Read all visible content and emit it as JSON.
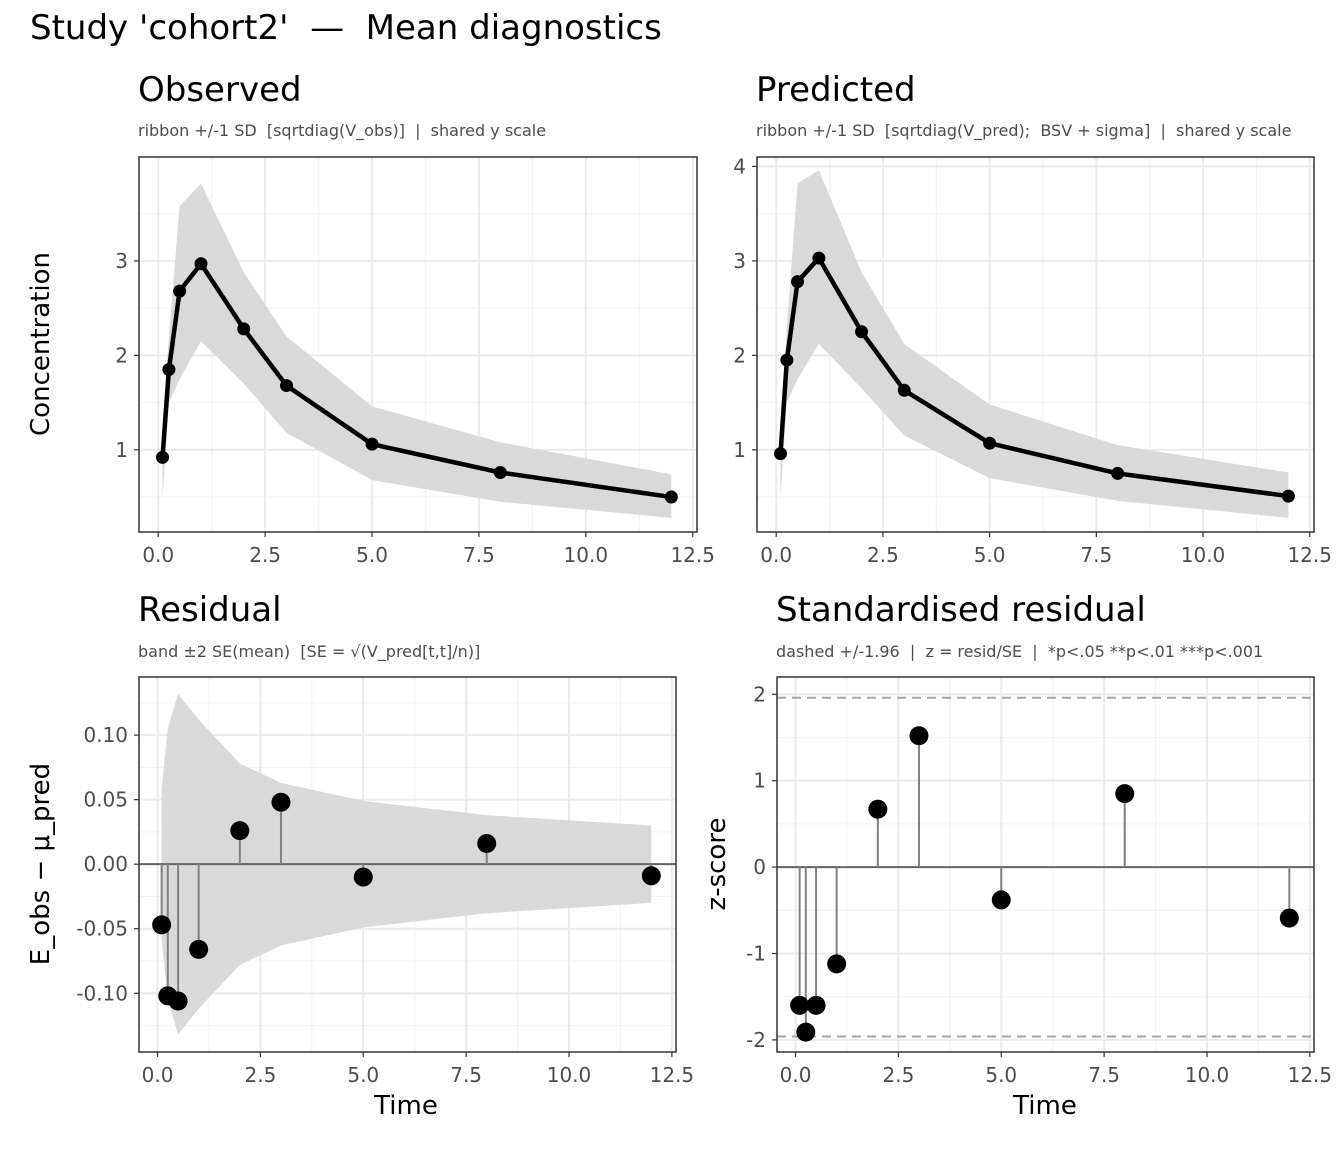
{
  "page_title": "Study 'cohort2'  —  Mean diagnostics",
  "colors": {
    "ribbon": "#d9d9d9",
    "line": "#000000",
    "grid_major": "#ebebeb",
    "grid_minor": "#f2f2f2",
    "panel_border": "#333333",
    "zero_line": "#666666",
    "stem": "#808080",
    "dashed": "#a6a6a6"
  },
  "chart_data": [
    {
      "panel": "observed",
      "type": "line",
      "title": "Observed",
      "subtitle": "ribbon +/-1 SD  [sqrtdiag(V_obs)]  |  shared y scale",
      "xlabel": "",
      "ylabel": "Concentration",
      "xlim": [
        -0.45,
        12.6
      ],
      "ylim": [
        0.13,
        4.1
      ],
      "x_ticks": [
        "0.0",
        "2.5",
        "5.0",
        "7.5",
        "10.0",
        "12.5"
      ],
      "y_ticks": [
        "1",
        "2",
        "3"
      ],
      "x": [
        0.1,
        0.25,
        0.5,
        1,
        2,
        3,
        5,
        8,
        12
      ],
      "y": [
        0.92,
        1.85,
        2.68,
        2.97,
        2.28,
        1.68,
        1.06,
        0.76,
        0.5
      ],
      "ribbon_lower": [
        0.5,
        1.5,
        1.75,
        2.15,
        1.7,
        1.18,
        0.68,
        0.45,
        0.28
      ],
      "ribbon_upper": [
        1.3,
        2.2,
        3.58,
        3.82,
        2.88,
        2.2,
        1.46,
        1.08,
        0.74
      ]
    },
    {
      "panel": "predicted",
      "type": "line",
      "title": "Predicted",
      "subtitle": "ribbon +/-1 SD  [sqrtdiag(V_pred);  BSV + sigma]  |  shared y scale",
      "xlabel": "",
      "ylabel": "",
      "xlim": [
        -0.45,
        12.6
      ],
      "ylim": [
        0.13,
        4.1
      ],
      "x_ticks": [
        "0.0",
        "2.5",
        "5.0",
        "7.5",
        "10.0",
        "12.5"
      ],
      "y_ticks": [
        "1",
        "2",
        "3",
        "4"
      ],
      "x": [
        0.1,
        0.25,
        0.5,
        1,
        2,
        3,
        5,
        8,
        12
      ],
      "y": [
        0.96,
        1.95,
        2.78,
        3.03,
        2.25,
        1.63,
        1.07,
        0.75,
        0.51
      ],
      "ribbon_lower": [
        0.5,
        1.5,
        1.75,
        2.12,
        1.65,
        1.15,
        0.7,
        0.46,
        0.28
      ],
      "ribbon_upper": [
        1.3,
        2.3,
        3.82,
        3.96,
        2.88,
        2.12,
        1.48,
        1.05,
        0.76
      ]
    },
    {
      "panel": "residual",
      "type": "scatter",
      "title": "Residual",
      "subtitle": "band ±2 SE(mean)  [SE = √(V_pred[t,t]/n)]",
      "xlabel": "Time",
      "ylabel": "E_obs − μ_pred",
      "xlim": [
        -0.45,
        12.6
      ],
      "ylim": [
        -0.1455,
        0.145
      ],
      "x_ticks": [
        "0.0",
        "2.5",
        "5.0",
        "7.5",
        "10.0",
        "12.5"
      ],
      "y_ticks": [
        "0.10",
        "0.05",
        "0.00",
        "-0.05",
        "-0.10"
      ],
      "x": [
        0.1,
        0.25,
        0.5,
        1,
        2,
        3,
        5,
        8,
        12
      ],
      "y": [
        -0.047,
        -0.102,
        -0.106,
        -0.066,
        0.026,
        0.048,
        -0.01,
        0.016,
        -0.009
      ],
      "band_x": [
        0.1,
        0.25,
        0.5,
        1,
        2,
        3,
        5,
        8,
        12
      ],
      "band_half": [
        0.058,
        0.105,
        0.132,
        0.112,
        0.078,
        0.063,
        0.049,
        0.038,
        0.03
      ]
    },
    {
      "panel": "standardised",
      "type": "scatter",
      "title": "Standardised residual",
      "subtitle": "dashed +/-1.96  |  z = resid/SE  |  *p<.05 **p<.01 ***p<.001",
      "xlabel": "Time",
      "ylabel": "z-score",
      "xlim": [
        -0.45,
        12.6
      ],
      "ylim": [
        -2.14,
        2.2
      ],
      "x_ticks": [
        "0.0",
        "2.5",
        "5.0",
        "7.5",
        "10.0",
        "12.5"
      ],
      "y_ticks": [
        "2",
        "1",
        "0",
        "-1",
        "-2"
      ],
      "x": [
        0.1,
        0.25,
        0.5,
        1,
        2,
        3,
        5,
        8,
        12
      ],
      "y": [
        -1.6,
        -1.91,
        -1.6,
        -1.12,
        0.67,
        1.52,
        -0.38,
        0.85,
        -0.59
      ],
      "reference_lines": [
        1.96,
        -1.96
      ]
    }
  ]
}
